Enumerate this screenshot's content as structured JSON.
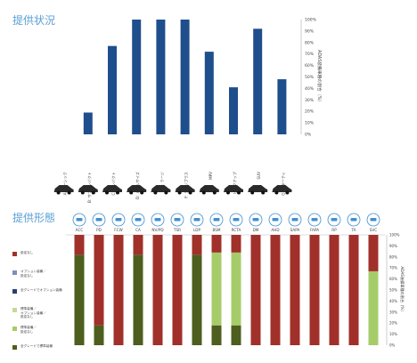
{
  "section1_title": "提供状況",
  "section2_title": "提供形態",
  "chart_data": [
    {
      "type": "bar",
      "title": "",
      "ylabel": "ADAS装備車種の割合（%）",
      "ylim": [
        0,
        100
      ],
      "yticks": [
        "0%",
        "10%",
        "20%",
        "30%",
        "40%",
        "50%",
        "60%",
        "70%",
        "80%",
        "90%",
        "100%"
      ],
      "categories": [
        "A: ベーシック",
        "B: サブコンパクト",
        "C: コンパクト",
        "D: ミドルサイズ",
        "E: ラージ",
        "F: ラージプラス",
        "MPV",
        "ピックアップ",
        "SUV",
        "G: スポーティ"
      ],
      "values": [
        0,
        19,
        77,
        100,
        100,
        100,
        72,
        41,
        92,
        48
      ],
      "colors": {
        "bar": "#1f4e8c"
      },
      "grid": false
    },
    {
      "type": "bar",
      "stacked": true,
      "title": "",
      "ylabel": "ADAS装備車種の割合（%）",
      "ylim": [
        0,
        100
      ],
      "yticks": [
        "0%",
        "10%",
        "20%",
        "30%",
        "40%",
        "50%",
        "60%",
        "70%",
        "80%",
        "90%",
        "100%"
      ],
      "categories": [
        "ACC",
        "PD",
        "FCW",
        "CA",
        "NV/PD",
        "TSR",
        "LDP",
        "BSM",
        "RCTA",
        "DM",
        "AHD",
        "SAPA",
        "FAPA",
        "RP",
        "TA",
        "SVC"
      ],
      "series": [
        {
          "name": "全グレードで標準装備",
          "color": "#4e5e1e",
          "values": [
            82,
            18,
            0,
            82,
            0,
            0,
            82,
            18,
            18,
            0,
            0,
            0,
            0,
            0,
            0,
            0
          ]
        },
        {
          "name": "標準装備／\n設定なし",
          "color": "#a6cc6a",
          "values": [
            0,
            0,
            0,
            0,
            0,
            0,
            0,
            66,
            66,
            0,
            0,
            0,
            0,
            0,
            0,
            67
          ]
        },
        {
          "name": "標準装備／\nオプション装備／\n設定なし",
          "color": "#c4d89a",
          "values": [
            0,
            0,
            0,
            0,
            0,
            0,
            0,
            0,
            0,
            0,
            0,
            0,
            0,
            0,
            0,
            0
          ]
        },
        {
          "name": "全グレードでオプション装備",
          "color": "#2b3f6b",
          "values": [
            0,
            0,
            0,
            0,
            0,
            0,
            0,
            0,
            0,
            0,
            0,
            0,
            0,
            0,
            0,
            0
          ]
        },
        {
          "name": "オプション装備／\n設定なし",
          "color": "#7b8fc0",
          "values": [
            0,
            0,
            0,
            0,
            0,
            0,
            0,
            0,
            0,
            0,
            0,
            0,
            0,
            0,
            0,
            0
          ]
        },
        {
          "name": "設定なし",
          "color": "#a1302a",
          "values": [
            18,
            82,
            100,
            18,
            100,
            100,
            18,
            16,
            16,
            100,
            100,
            100,
            100,
            100,
            100,
            33
          ]
        }
      ]
    }
  ]
}
